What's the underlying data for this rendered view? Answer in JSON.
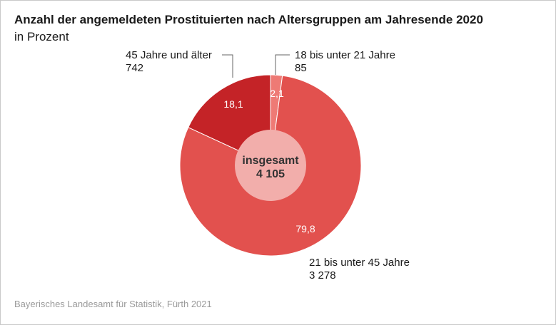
{
  "header": {
    "title": "Anzahl der angemeldeten Prostituierten nach Altersgruppen am Jahresende 2020",
    "subtitle": "in Prozent"
  },
  "footer": {
    "source": "Bayerisches Landesamt für Statistik, Fürth 2021"
  },
  "colors": {
    "slice_18_21": "#ee7a75",
    "slice_21_45": "#e2514e",
    "slice_45_plus": "#c42327",
    "center": "#f2aeab",
    "separator": "#ffffff"
  },
  "chart_data": {
    "type": "pie",
    "title": "Anzahl der angemeldeten Prostituierten nach Altersgruppen am Jahresende 2020",
    "subtitle": "in Prozent",
    "center_label": "insgesamt",
    "center_value": "4 105",
    "slices": [
      {
        "name": "18 bis unter 21 Jahre",
        "count": "85",
        "percent": 2.1,
        "percent_label": "2,1",
        "color": "#ee7a75"
      },
      {
        "name": "21 bis unter 45 Jahre",
        "count": "3 278",
        "percent": 79.8,
        "percent_label": "79,8",
        "color": "#e2514e"
      },
      {
        "name": "45 Jahre und älter",
        "count": "742",
        "percent": 18.1,
        "percent_label": "18,1",
        "color": "#c42327"
      }
    ]
  }
}
